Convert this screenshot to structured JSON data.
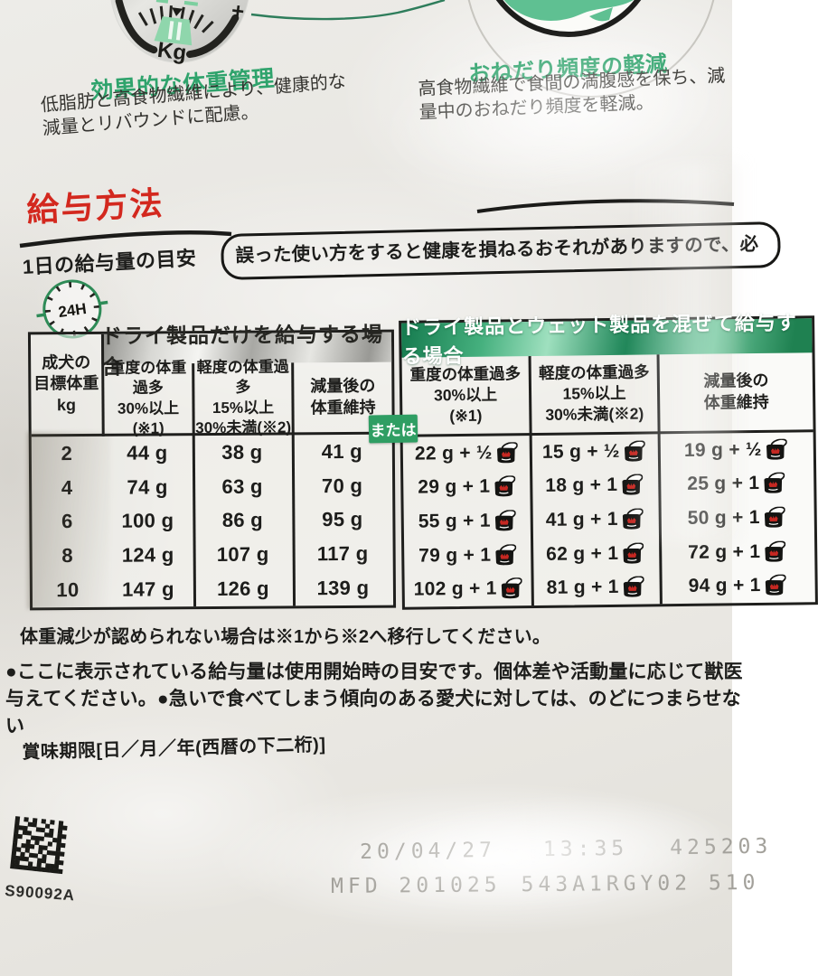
{
  "benefits": {
    "left": {
      "title": "効果的な体重管理",
      "body": "低脂肪と高食物繊維により、健康的な\n減量とリバウンドに配慮。"
    },
    "right": {
      "title": "おねだり頻度の軽減",
      "body": "高食物繊維で食間の満腹感を保ち、減\n量中のおねだり頻度を軽減。"
    },
    "scale_icon": {
      "minus_label": "−",
      "plus_label": "+",
      "unit_label": "Kg"
    }
  },
  "feeding_section": {
    "title": "給与方法",
    "daily_label": "1日の給与量の目安",
    "warning": "誤った使い方をすると健康を損ねるおそれがありますので、必",
    "clock_label": "24H",
    "or_label": "または"
  },
  "dry_table": {
    "title": "ドライ製品だけを給与する場合",
    "weight_header": "成犬の\n目標体重\nkg",
    "col_severe": "重度の体重過多\n30%以上\n(※1)",
    "col_mild": "軽度の体重過多\n15%以上\n30%未満(※2)",
    "col_maintain": "減量後の\n体重維持",
    "rows": [
      {
        "kg": "2",
        "severe": "44 g",
        "mild": "38 g",
        "maintain": "41 g"
      },
      {
        "kg": "4",
        "severe": "74 g",
        "mild": "63 g",
        "maintain": "70 g"
      },
      {
        "kg": "6",
        "severe": "100 g",
        "mild": "86 g",
        "maintain": "95 g"
      },
      {
        "kg": "8",
        "severe": "124 g",
        "mild": "107 g",
        "maintain": "117 g"
      },
      {
        "kg": "10",
        "severe": "147 g",
        "mild": "126 g",
        "maintain": "139 g"
      }
    ]
  },
  "mix_table": {
    "title": "ドライ製品とウェット製品を混ぜて給与する場合",
    "col_severe": "重度の体重過多\n30%以上\n(※1)",
    "col_mild": "軽度の体重過多\n15%以上\n30%未満(※2)",
    "col_maintain": "減量後の\n体重維持",
    "rows": [
      {
        "severe": "22 g + ½",
        "mild": "15 g + ½",
        "maintain": "19 g + ½"
      },
      {
        "severe": "29 g + 1",
        "mild": "18 g + 1",
        "maintain": "25 g + 1"
      },
      {
        "severe": "55 g + 1",
        "mild": "41 g + 1",
        "maintain": "50 g + 1"
      },
      {
        "severe": "79 g + 1",
        "mild": "62 g + 1",
        "maintain": "72 g + 1"
      },
      {
        "severe": "102 g + 1",
        "mild": "81 g + 1",
        "maintain": "94 g + 1"
      }
    ]
  },
  "notes": {
    "shift_note": "体重減少が認められない場合は※1から※2へ移行してください。",
    "guide": "●ここに表示されている給与量は使用開始時の目安です。個体差や活動量に応じて獣医\n与えてください。●急いで食べてしまう傾向のある愛犬に対しては、のどにつまらせない",
    "expiry_label": "賞味期限[日／月／年(西暦の下二桁)]"
  },
  "print_codes": {
    "plate_code": "S90092A",
    "date": "20/04/27",
    "time": "13:35",
    "lot": "425203",
    "mfd": "MFD 201025",
    "batch": "543A1RGY02 510"
  }
}
